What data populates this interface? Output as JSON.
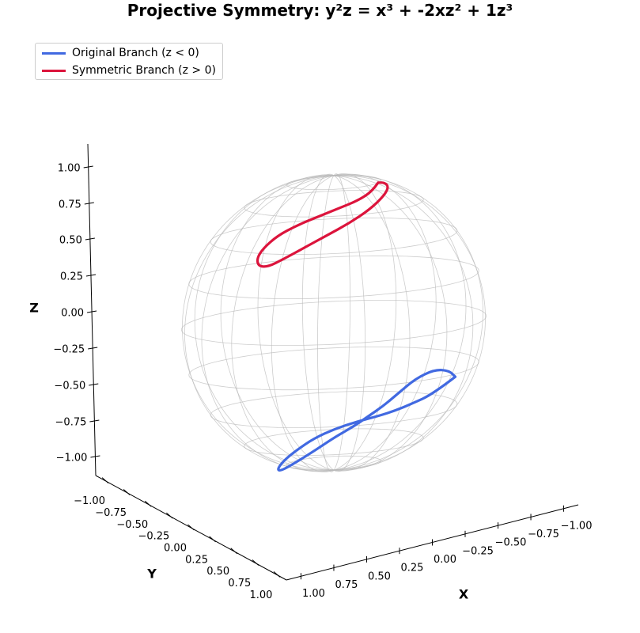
{
  "chart_data": {
    "type": "line",
    "title": "Projective Symmetry: y²z = x³ + -2xz² + 1z³",
    "xlabel": "X",
    "ylabel": "Y",
    "zlabel": "Z",
    "xlim": [
      -1.0,
      1.0
    ],
    "ylim": [
      -1.0,
      1.0
    ],
    "zlim": [
      -1.0,
      1.0
    ],
    "x_ticks": [
      "1.00",
      "0.75",
      "0.50",
      "0.25",
      "0.00",
      "−0.25",
      "−0.50",
      "−0.75",
      "−1.00"
    ],
    "y_ticks": [
      "−1.00",
      "−0.75",
      "−0.50",
      "−0.25",
      "0.00",
      "0.25",
      "0.50",
      "0.75",
      "1.00"
    ],
    "z_ticks": [
      "1.00",
      "0.75",
      "0.50",
      "0.25",
      "0.00",
      "−0.25",
      "−0.50",
      "−0.75",
      "−1.00"
    ],
    "legend_position": "top-left",
    "surface": "unit sphere wireframe",
    "series": [
      {
        "name": "Original Branch (z < 0)",
        "color": "#4169e1",
        "points": [
          [
            -0.85,
            0.12,
            -0.45
          ],
          [
            -0.72,
            0.05,
            -0.56
          ],
          [
            -0.55,
            0.08,
            -0.6
          ],
          [
            -0.38,
            0.16,
            -0.62
          ],
          [
            -0.2,
            0.24,
            -0.63
          ],
          [
            0.0,
            0.3,
            -0.64
          ],
          [
            0.2,
            0.36,
            -0.66
          ],
          [
            0.38,
            0.4,
            -0.7
          ],
          [
            0.52,
            0.42,
            -0.76
          ],
          [
            0.62,
            0.42,
            -0.82
          ],
          [
            0.66,
            0.4,
            -0.88
          ],
          [
            0.6,
            0.35,
            -0.9
          ],
          [
            0.45,
            0.3,
            -0.86
          ],
          [
            0.28,
            0.26,
            -0.8
          ],
          [
            0.1,
            0.2,
            -0.74
          ],
          [
            -0.08,
            0.12,
            -0.7
          ],
          [
            -0.25,
            0.02,
            -0.66
          ],
          [
            -0.42,
            -0.08,
            -0.62
          ],
          [
            -0.58,
            -0.16,
            -0.56
          ],
          [
            -0.72,
            -0.18,
            -0.48
          ],
          [
            -0.82,
            -0.1,
            -0.42
          ],
          [
            -0.86,
            0.02,
            -0.42
          ],
          [
            -0.85,
            0.12,
            -0.45
          ]
        ]
      },
      {
        "name": "Symmetric Branch (z > 0)",
        "color": "#dc143c",
        "points": [
          [
            -0.45,
            -0.2,
            0.88
          ],
          [
            -0.36,
            -0.12,
            0.84
          ],
          [
            -0.22,
            -0.06,
            0.8
          ],
          [
            -0.05,
            -0.02,
            0.77
          ],
          [
            0.12,
            0.02,
            0.74
          ],
          [
            0.3,
            0.04,
            0.7
          ],
          [
            0.46,
            0.06,
            0.65
          ],
          [
            0.58,
            0.08,
            0.58
          ],
          [
            0.64,
            0.1,
            0.52
          ],
          [
            0.64,
            0.12,
            0.47
          ],
          [
            0.58,
            0.14,
            0.46
          ],
          [
            0.46,
            0.14,
            0.5
          ],
          [
            0.3,
            0.14,
            0.56
          ],
          [
            0.12,
            0.12,
            0.62
          ],
          [
            -0.06,
            0.1,
            0.68
          ],
          [
            -0.24,
            0.06,
            0.75
          ],
          [
            -0.38,
            0.0,
            0.82
          ],
          [
            -0.46,
            -0.08,
            0.86
          ],
          [
            -0.48,
            -0.16,
            0.88
          ],
          [
            -0.45,
            -0.2,
            0.88
          ]
        ]
      }
    ]
  }
}
